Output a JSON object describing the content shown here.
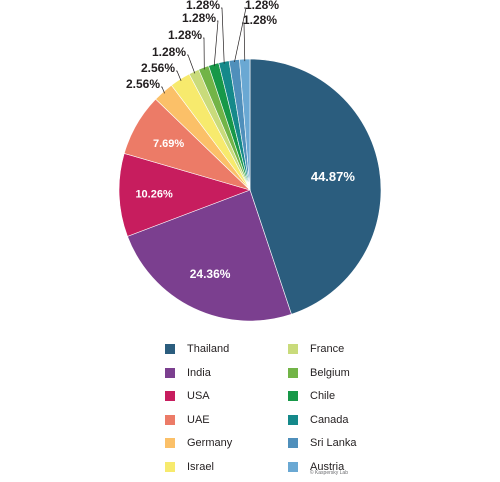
{
  "chart_data": {
    "type": "pie",
    "unit": "%",
    "categories": [
      "Thailand",
      "India",
      "USA",
      "UAE",
      "Germany",
      "Israel",
      "France",
      "Belgium",
      "Chile",
      "Canada",
      "Sri Lanka",
      "Austria"
    ],
    "values": [
      44.87,
      24.36,
      10.26,
      7.69,
      2.56,
      2.56,
      1.28,
      1.28,
      1.28,
      1.28,
      1.28,
      1.28
    ],
    "labels": [
      "44.87%",
      "24.36%",
      "10.26%",
      "7.69%",
      "2.56%",
      "2.56%",
      "1.28%",
      "1.28%",
      "1.28%",
      "1.28%",
      "1.28%",
      "1.28%"
    ],
    "colors": [
      "#2b5d7e",
      "#7b3f8f",
      "#c71d5e",
      "#ec7b67",
      "#fbc068",
      "#f7ea6d",
      "#c9db7b",
      "#72b447",
      "#179848",
      "#15898a",
      "#4f8fbb",
      "#6aa8d3"
    ],
    "title": "",
    "legend_position": "bottom"
  },
  "credit": "© Kaspersky Lab"
}
